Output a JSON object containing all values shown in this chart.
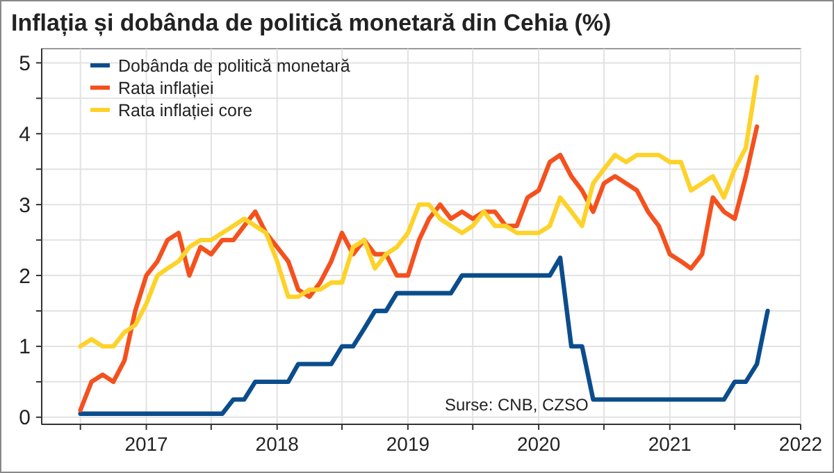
{
  "chart_data": {
    "type": "line",
    "title": "Inflația și dobânda de politică monetară din Cehia (%)",
    "x": [
      "2016-07",
      "2016-08",
      "2016-09",
      "2016-10",
      "2016-11",
      "2016-12",
      "2017-01",
      "2017-02",
      "2017-03",
      "2017-04",
      "2017-05",
      "2017-06",
      "2017-07",
      "2017-08",
      "2017-09",
      "2017-10",
      "2017-11",
      "2017-12",
      "2018-01",
      "2018-02",
      "2018-03",
      "2018-04",
      "2018-05",
      "2018-06",
      "2018-07",
      "2018-08",
      "2018-09",
      "2018-10",
      "2018-11",
      "2018-12",
      "2019-01",
      "2019-02",
      "2019-03",
      "2019-04",
      "2019-05",
      "2019-06",
      "2019-07",
      "2019-08",
      "2019-09",
      "2019-10",
      "2019-11",
      "2019-12",
      "2020-01",
      "2020-02",
      "2020-03",
      "2020-04",
      "2020-05",
      "2020-06",
      "2020-07",
      "2020-08",
      "2020-09",
      "2020-10",
      "2020-11",
      "2020-12",
      "2021-01",
      "2021-02",
      "2021-03",
      "2021-04",
      "2021-05",
      "2021-06",
      "2021-07",
      "2021-08",
      "2021-09",
      "2021-10"
    ],
    "series": [
      {
        "name": "Dobânda de politică monetară",
        "color": "#0b4d8c",
        "values": [
          0.05,
          0.05,
          0.05,
          0.05,
          0.05,
          0.05,
          0.05,
          0.05,
          0.05,
          0.05,
          0.05,
          0.05,
          0.05,
          0.05,
          0.25,
          0.25,
          0.5,
          0.5,
          0.5,
          0.5,
          0.75,
          0.75,
          0.75,
          0.75,
          1.0,
          1.0,
          1.25,
          1.5,
          1.5,
          1.75,
          1.75,
          1.75,
          1.75,
          1.75,
          1.75,
          2.0,
          2.0,
          2.0,
          2.0,
          2.0,
          2.0,
          2.0,
          2.0,
          2.0,
          2.25,
          1.0,
          1.0,
          0.25,
          0.25,
          0.25,
          0.25,
          0.25,
          0.25,
          0.25,
          0.25,
          0.25,
          0.25,
          0.25,
          0.25,
          0.25,
          0.5,
          0.5,
          0.75,
          1.5
        ]
      },
      {
        "name": "Rata inflației",
        "color": "#f4511e",
        "values": [
          0.1,
          0.5,
          0.6,
          0.5,
          0.8,
          1.5,
          2.0,
          2.2,
          2.5,
          2.6,
          2.0,
          2.4,
          2.3,
          2.5,
          2.5,
          2.7,
          2.9,
          2.6,
          2.4,
          2.2,
          1.8,
          1.7,
          1.9,
          2.2,
          2.6,
          2.3,
          2.5,
          2.3,
          2.3,
          2.0,
          2.0,
          2.5,
          2.8,
          3.0,
          2.8,
          2.9,
          2.8,
          2.9,
          2.9,
          2.7,
          2.7,
          3.1,
          3.2,
          3.6,
          3.7,
          3.4,
          3.2,
          2.9,
          3.3,
          3.4,
          3.3,
          3.2,
          2.9,
          2.7,
          2.3,
          2.2,
          2.1,
          2.3,
          3.1,
          2.9,
          2.8,
          3.4,
          4.1,
          null
        ]
      },
      {
        "name": "Rata inflației core",
        "color": "#fdd32b",
        "values": [
          1.0,
          1.1,
          1.0,
          1.0,
          1.2,
          1.3,
          1.6,
          2.0,
          2.1,
          2.2,
          2.4,
          2.5,
          2.5,
          2.6,
          2.7,
          2.8,
          2.7,
          2.6,
          2.2,
          1.7,
          1.7,
          1.8,
          1.8,
          1.9,
          1.9,
          2.4,
          2.5,
          2.1,
          2.3,
          2.4,
          2.6,
          3.0,
          3.0,
          2.8,
          2.7,
          2.6,
          2.7,
          2.9,
          2.7,
          2.7,
          2.6,
          2.6,
          2.6,
          2.7,
          3.1,
          2.9,
          2.7,
          3.3,
          3.5,
          3.7,
          3.6,
          3.7,
          3.7,
          3.7,
          3.6,
          3.6,
          3.2,
          3.3,
          3.4,
          3.1,
          3.5,
          3.8,
          4.8,
          null
        ]
      }
    ],
    "xlim": [
      "2016-03-15",
      "2022-01-01"
    ],
    "xticks": [
      {
        "value": "2016-07",
        "label": null
      },
      {
        "value": "2017",
        "label": "2017"
      },
      {
        "value": "2017-07",
        "label": null
      },
      {
        "value": "2018",
        "label": "2018"
      },
      {
        "value": "2018-07",
        "label": null
      },
      {
        "value": "2019",
        "label": "2019"
      },
      {
        "value": "2019-07",
        "label": null
      },
      {
        "value": "2020",
        "label": "2020"
      },
      {
        "value": "2020-07",
        "label": null
      },
      {
        "value": "2021",
        "label": "2021"
      },
      {
        "value": "2021-07",
        "label": null
      },
      {
        "value": "2022",
        "label": "2022"
      }
    ],
    "ylim": [
      -0.1,
      5.2
    ],
    "yticks": [
      0,
      {
        "value": 0.5,
        "label": null
      },
      1,
      {
        "value": 1.5,
        "label": null
      },
      2,
      {
        "value": 2.5,
        "label": null
      },
      3,
      {
        "value": 3.5,
        "label": null
      },
      4,
      {
        "value": 4.5,
        "label": null
      },
      5
    ],
    "grid": true,
    "legend": "top left",
    "marker": "none",
    "line_style": "solid",
    "annotations": [
      "Surse: CNB, CZSO"
    ]
  }
}
